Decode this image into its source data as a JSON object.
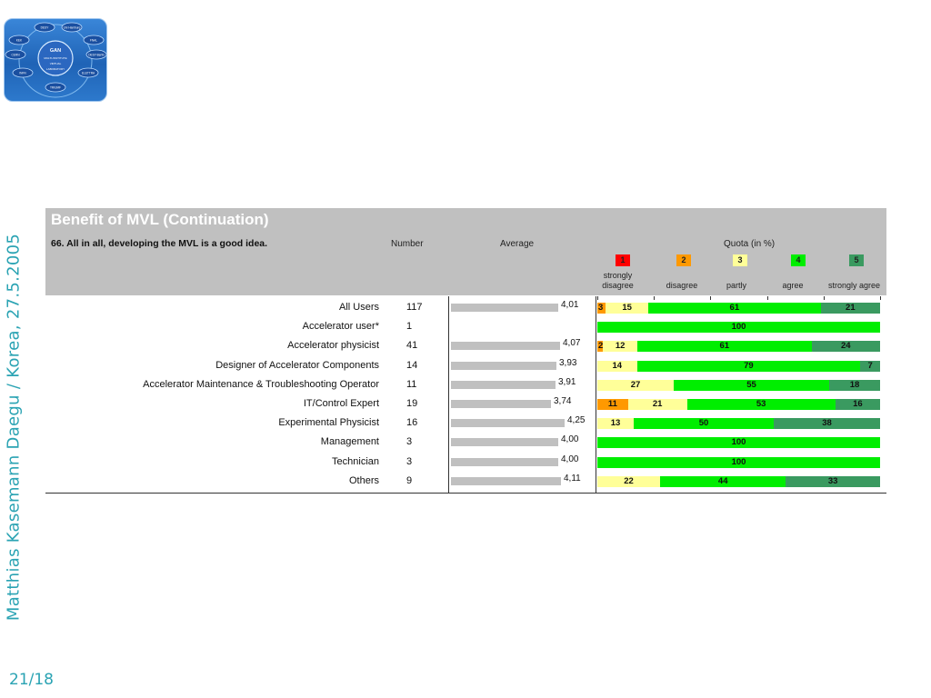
{
  "side_text": "Matthias Kasemann   Daegu / Korea, 27.5.2005",
  "page_number": "21/18",
  "logo": {
    "center_lines": [
      "GAN",
      "MULTI-INSTITUTE",
      "VIRTUAL",
      "LABORATORY"
    ],
    "satellites": [
      "DESY",
      "Uni Hamburg",
      "KEK",
      "FNAL",
      "CERN",
      "DESY-Berlin",
      "INFN",
      "ELETTRA",
      "TRIUMF",
      "SLAC"
    ]
  },
  "chart_data": {
    "type": "table",
    "title": "Benefit of MVL (Continuation)",
    "question": "66. All in all, developing the MVL is a good idea.",
    "column_headers": {
      "number": "Number",
      "average": "Average",
      "quota": "Quota (in %)"
    },
    "scale": [
      {
        "value": "1",
        "label": "strongly disagree",
        "color": "#ff0000"
      },
      {
        "value": "2",
        "label": "disagree",
        "color": "#ff9900"
      },
      {
        "value": "3",
        "label": "partly",
        "color": "#ffff99"
      },
      {
        "value": "4",
        "label": "agree",
        "color": "#00ee00"
      },
      {
        "value": "5",
        "label": "strongly agree",
        "color": "#3a9a60"
      }
    ],
    "average_range": [
      1,
      5
    ],
    "rows": [
      {
        "label": "All Users",
        "number": "117",
        "average": 4.01,
        "average_text": "4,01",
        "quota": [
          0,
          3,
          15,
          61,
          21
        ]
      },
      {
        "label": "Accelerator user*",
        "number": "1",
        "average": null,
        "average_text": "",
        "quota": [
          0,
          0,
          0,
          100,
          0
        ]
      },
      {
        "label": "Accelerator physicist",
        "number": "41",
        "average": 4.07,
        "average_text": "4,07",
        "quota": [
          0,
          2,
          12,
          61,
          24
        ]
      },
      {
        "label": "Designer of Accelerator Components",
        "number": "14",
        "average": 3.93,
        "average_text": "3,93",
        "quota": [
          0,
          0,
          14,
          79,
          7
        ]
      },
      {
        "label": "Accelerator Maintenance & Troubleshooting Operator",
        "number": "11",
        "average": 3.91,
        "average_text": "3,91",
        "quota": [
          0,
          0,
          27,
          55,
          18
        ]
      },
      {
        "label": "IT/Control Expert",
        "number": "19",
        "average": 3.74,
        "average_text": "3,74",
        "quota": [
          0,
          11,
          21,
          53,
          16
        ]
      },
      {
        "label": "Experimental Physicist",
        "number": "16",
        "average": 4.25,
        "average_text": "4,25",
        "quota": [
          0,
          0,
          13,
          50,
          38
        ]
      },
      {
        "label": "Management",
        "number": "3",
        "average": 4.0,
        "average_text": "4,00",
        "quota": [
          0,
          0,
          0,
          100,
          0
        ]
      },
      {
        "label": "Technician",
        "number": "3",
        "average": 4.0,
        "average_text": "4,00",
        "quota": [
          0,
          0,
          0,
          100,
          0
        ]
      },
      {
        "label": "Others",
        "number": "9",
        "average": 4.11,
        "average_text": "4,11",
        "quota": [
          0,
          0,
          22,
          44,
          33
        ]
      }
    ]
  }
}
